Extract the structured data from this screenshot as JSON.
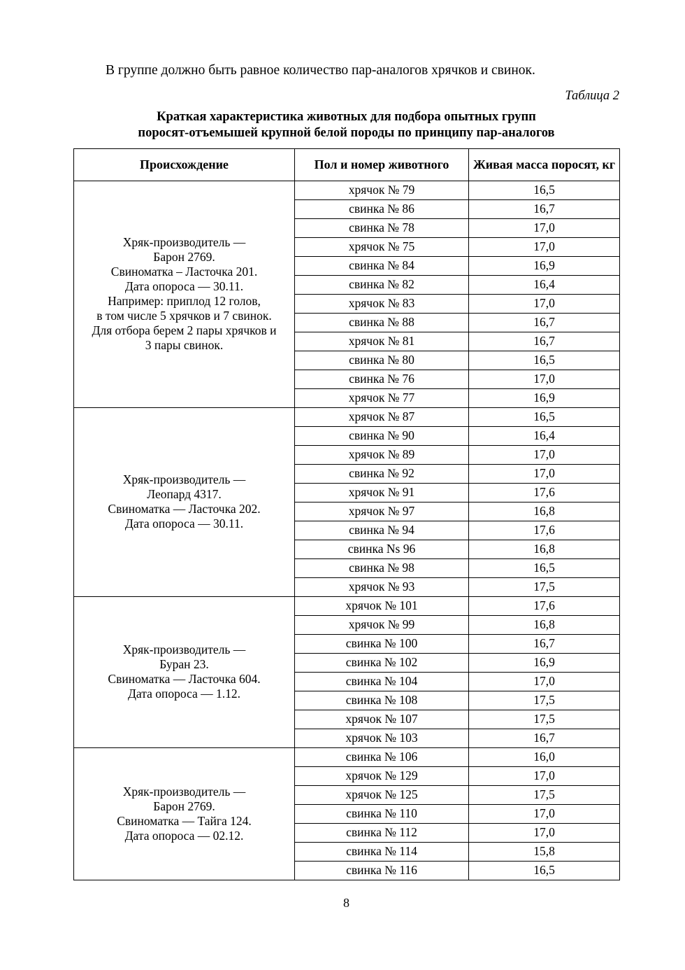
{
  "page": {
    "intro": "В группе должно быть равное количество пар-аналогов хрячков и свинок.",
    "table_label": "Таблица 2",
    "title_line1": "Краткая характеристика животных для подбора опытных групп",
    "title_line2": "поросят-отъемышей крупной белой породы по принципу пар-аналогов",
    "page_number": "8"
  },
  "table": {
    "headers": [
      "Происхождение",
      "Пол и номер животного",
      "Живая масса поросят, кг"
    ],
    "groups": [
      {
        "origin": [
          "Хряк-производитель —",
          "Барон 2769.",
          "Свиноматка – Ласточка 201.",
          "Дата опороса — 30.11.",
          "Например: приплод 12 голов,",
          "в том числе 5 хрячков и 7 свинок.",
          "Для отбора берем 2 пары хрячков и",
          "3 пары свинок."
        ],
        "rows": [
          {
            "animal": "хрячок № 79",
            "mass": "16,5"
          },
          {
            "animal": "свинка № 86",
            "mass": "16,7"
          },
          {
            "animal": "свинка № 78",
            "mass": "17,0"
          },
          {
            "animal": "хрячок № 75",
            "mass": "17,0"
          },
          {
            "animal": "свинка № 84",
            "mass": "16,9"
          },
          {
            "animal": "свинка № 82",
            "mass": "16,4"
          },
          {
            "animal": "хрячок № 83",
            "mass": "17,0"
          },
          {
            "animal": "свинка № 88",
            "mass": "16,7"
          },
          {
            "animal": "хрячок № 81",
            "mass": "16,7"
          },
          {
            "animal": "свинка № 80",
            "mass": "16,5"
          },
          {
            "animal": "свинка № 76",
            "mass": "17,0"
          },
          {
            "animal": "хрячок № 77",
            "mass": "16,9"
          }
        ]
      },
      {
        "origin": [
          "Хряк-производитель —",
          "Леопард 4317.",
          "Свиноматка — Ласточка 202.",
          "Дата опороса — 30.11."
        ],
        "rows": [
          {
            "animal": "хрячок № 87",
            "mass": "16,5"
          },
          {
            "animal": "свинка № 90",
            "mass": "16,4"
          },
          {
            "animal": "хрячок № 89",
            "mass": "17,0"
          },
          {
            "animal": "свинка № 92",
            "mass": "17,0"
          },
          {
            "animal": "хрячок № 91",
            "mass": "17,6"
          },
          {
            "animal": "хрячок № 97",
            "mass": "16,8"
          },
          {
            "animal": "свинка № 94",
            "mass": "17,6"
          },
          {
            "animal": "свинка Ns 96",
            "mass": "16,8"
          },
          {
            "animal": "свинка № 98",
            "mass": "16,5"
          },
          {
            "animal": "хрячок № 93",
            "mass": "17,5"
          }
        ]
      },
      {
        "origin": [
          "Хряк-производитель —",
          "Буран 23.",
          "Свиноматка — Ласточка 604.",
          "Дата опороса — 1.12."
        ],
        "rows": [
          {
            "animal": "хрячок № 101",
            "mass": "17,6"
          },
          {
            "animal": "хрячок № 99",
            "mass": "16,8"
          },
          {
            "animal": "свинка № 100",
            "mass": "16,7"
          },
          {
            "animal": "свинка № 102",
            "mass": "16,9"
          },
          {
            "animal": "свинка № 104",
            "mass": "17,0"
          },
          {
            "animal": "свинка № 108",
            "mass": "17,5"
          },
          {
            "animal": "хрячок № 107",
            "mass": "17,5"
          },
          {
            "animal": "хрячок № 103",
            "mass": "16,7"
          }
        ]
      },
      {
        "origin": [
          "Хряк-производитель —",
          "Барон 2769.",
          "Свиноматка — Тайга 124.",
          "Дата опороса — 02.12."
        ],
        "rows": [
          {
            "animal": "свинка № 106",
            "mass": "16,0"
          },
          {
            "animal": "хрячок № 129",
            "mass": "17,0"
          },
          {
            "animal": "хрячок № 125",
            "mass": "17,5"
          },
          {
            "animal": "свинка № 110",
            "mass": "17,0"
          },
          {
            "animal": "свинка № 112",
            "mass": "17,0"
          },
          {
            "animal": "свинка № 114",
            "mass": "15,8"
          },
          {
            "animal": "свинка № 116",
            "mass": "16,5"
          }
        ]
      }
    ]
  }
}
